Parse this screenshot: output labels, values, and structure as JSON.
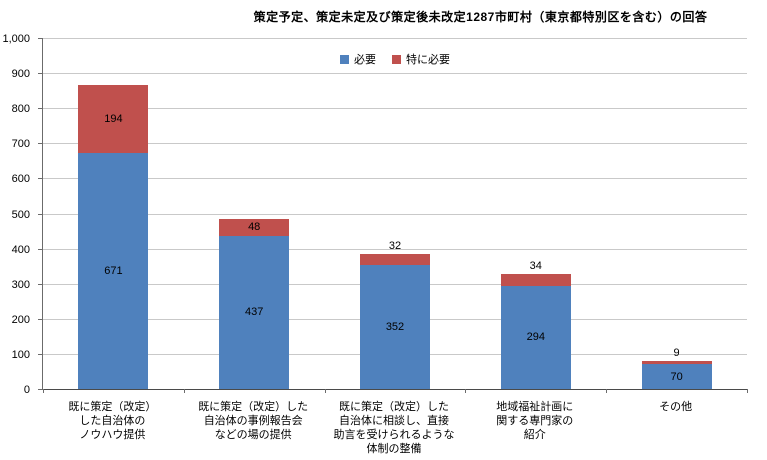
{
  "title": "策定予定、策定未定及び策定後未改定1287市町村（東京都特別区を含む）の回答",
  "legend": {
    "items": [
      {
        "label": "必要",
        "color": "#4F81BD"
      },
      {
        "label": "特に必要",
        "color": "#C0504D"
      }
    ]
  },
  "chart_data": {
    "type": "bar",
    "stacked": true,
    "title": "策定予定、策定未定及び策定後未改定1287市町村（東京都特別区を含む）の回答",
    "categories": [
      "既に策定（改定）\nした自治体の\nノウハウ提供",
      "既に策定（改定）した\n自治体の事例報告会\nなどの場の提供",
      "既に策定（改定）した\n自治体に相談し、直接\n助言を受けられるような\n体制の整備",
      "地域福祉計画に\n関する専門家の\n紹介",
      "その他"
    ],
    "series": [
      {
        "name": "必要",
        "color": "#4F81BD",
        "values": [
          671,
          437,
          352,
          294,
          70
        ]
      },
      {
        "name": "特に必要",
        "color": "#C0504D",
        "values": [
          194,
          48,
          32,
          34,
          9
        ]
      }
    ],
    "totals": [
      865,
      485,
      384,
      328,
      79
    ],
    "xlabel": "",
    "ylabel": "",
    "ylim": [
      0,
      1000
    ],
    "ytick_step": 100,
    "grid": true,
    "legend_position": "top-center",
    "value_labels": "inside-center"
  }
}
